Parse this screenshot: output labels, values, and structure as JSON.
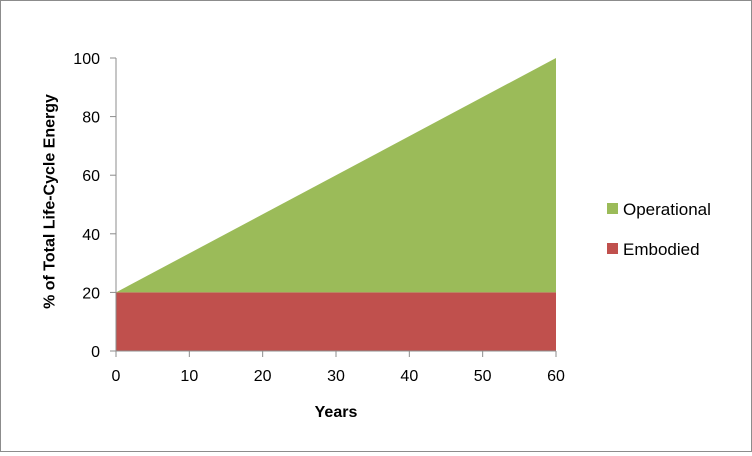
{
  "chart_data": {
    "type": "area",
    "stacked": true,
    "x": [
      0,
      60
    ],
    "series": [
      {
        "name": "Embodied",
        "values": [
          20,
          20
        ],
        "color": "#c0504d"
      },
      {
        "name": "Operational",
        "values": [
          0,
          80
        ],
        "color": "#9bbb59"
      }
    ],
    "xlabel": "Years",
    "ylabel": "% of Total Life-Cycle Energy",
    "xlim": [
      0,
      60
    ],
    "ylim": [
      0,
      100
    ],
    "xticks": [
      0,
      10,
      20,
      30,
      40,
      50,
      60
    ],
    "yticks": [
      0,
      20,
      40,
      60,
      80,
      100
    ],
    "grid": false,
    "legend_position": "right",
    "legend_order": [
      "Operational",
      "Embodied"
    ]
  }
}
